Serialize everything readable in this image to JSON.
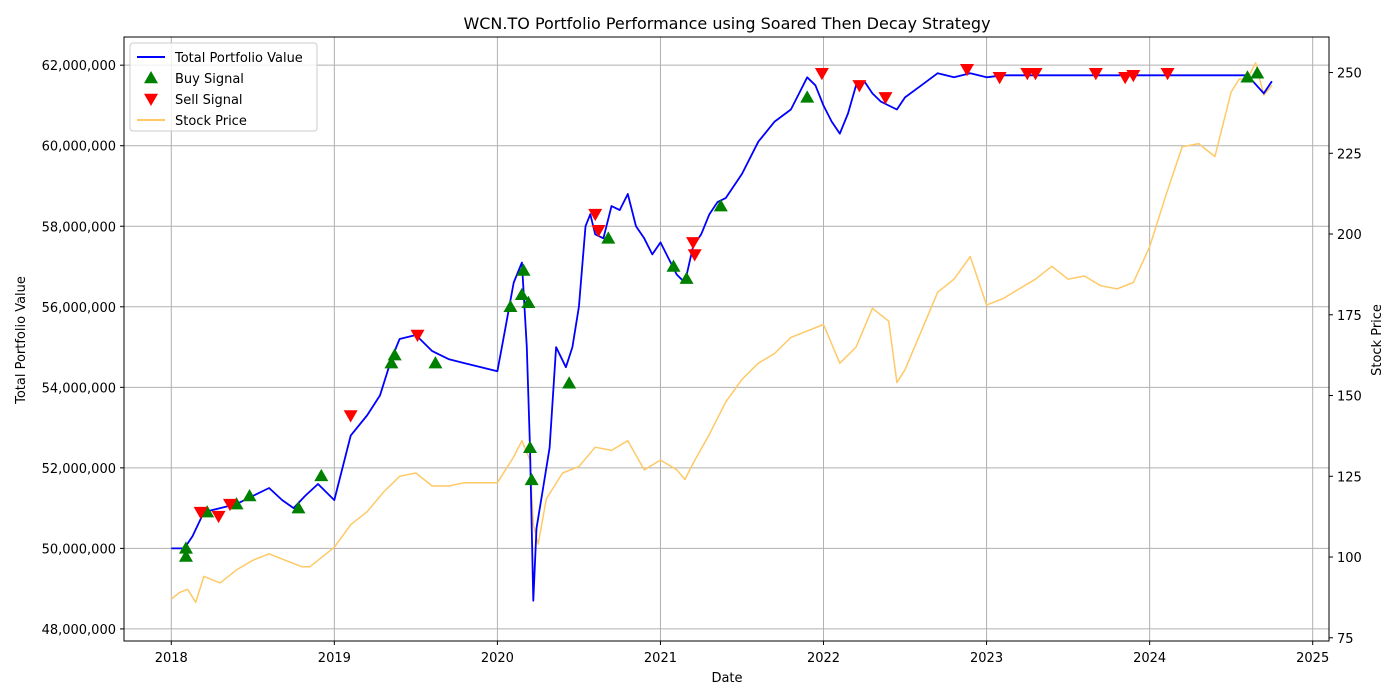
{
  "chart_data": {
    "type": "line",
    "title": "WCN.TO Portfolio Performance using Soared Then Decay Strategy",
    "xlabel": "Date",
    "ylabel": "Total Portfolio Value",
    "y2label": "Stock Price",
    "xlim": [
      2017.71,
      2025.1
    ],
    "ylim": [
      47700000,
      62700000
    ],
    "y2lim": [
      74,
      261
    ],
    "x_ticks": [
      2018,
      2019,
      2020,
      2021,
      2022,
      2023,
      2024,
      2025
    ],
    "x_tick_labels": [
      "2018",
      "2019",
      "2020",
      "2021",
      "2022",
      "2023",
      "2024",
      "2025"
    ],
    "y_ticks": [
      48000000,
      50000000,
      52000000,
      54000000,
      56000000,
      58000000,
      60000000,
      62000000
    ],
    "y_tick_labels": [
      "48,000,000",
      "50,000,000",
      "52,000,000",
      "54,000,000",
      "56,000,000",
      "58,000,000",
      "60,000,000",
      "62,000,000"
    ],
    "y2_ticks": [
      75,
      100,
      125,
      150,
      175,
      200,
      225,
      250
    ],
    "y2_tick_labels": [
      "75",
      "100",
      "125",
      "150",
      "175",
      "200",
      "225",
      "250"
    ],
    "grid": true,
    "legend_position": "top-left",
    "legend": [
      {
        "label": "Total Portfolio Value",
        "kind": "line",
        "color": "#0000ff"
      },
      {
        "label": "Buy Signal",
        "kind": "up-triangle",
        "color": "#008000"
      },
      {
        "label": "Sell Signal",
        "kind": "down-triangle",
        "color": "#ff0000"
      },
      {
        "label": "Stock Price",
        "kind": "line",
        "color": "#ffc966"
      }
    ],
    "series": [
      {
        "name": "Total Portfolio Value",
        "axis": "left",
        "color": "#0000ff",
        "x": [
          2018.0,
          2018.08,
          2018.13,
          2018.2,
          2018.3,
          2018.4,
          2018.5,
          2018.6,
          2018.68,
          2018.75,
          2018.82,
          2018.9,
          2019.0,
          2019.1,
          2019.2,
          2019.28,
          2019.35,
          2019.4,
          2019.5,
          2019.6,
          2019.7,
          2019.8,
          2019.9,
          2020.0,
          2020.05,
          2020.1,
          2020.15,
          2020.18,
          2020.2,
          2020.22,
          2020.24,
          2020.28,
          2020.32,
          2020.36,
          2020.42,
          2020.46,
          2020.5,
          2020.54,
          2020.57,
          2020.6,
          2020.65,
          2020.7,
          2020.75,
          2020.8,
          2020.85,
          2020.9,
          2020.95,
          2021.0,
          2021.05,
          2021.1,
          2021.15,
          2021.2,
          2021.25,
          2021.3,
          2021.35,
          2021.4,
          2021.5,
          2021.6,
          2021.7,
          2021.8,
          2021.85,
          2021.9,
          2021.95,
          2022.0,
          2022.05,
          2022.1,
          2022.15,
          2022.2,
          2022.25,
          2022.3,
          2022.35,
          2022.4,
          2022.45,
          2022.5,
          2022.6,
          2022.7,
          2022.8,
          2022.9,
          2023.0,
          2023.1,
          2023.2,
          2023.3,
          2023.4,
          2023.6,
          2023.8,
          2024.0,
          2024.3,
          2024.6,
          2024.7,
          2024.75
        ],
        "values": [
          50000000,
          50000000,
          50300000,
          50900000,
          51000000,
          51100000,
          51300000,
          51500000,
          51200000,
          51000000,
          51300000,
          51600000,
          51200000,
          52800000,
          53300000,
          53800000,
          54700000,
          55200000,
          55300000,
          54900000,
          54700000,
          54600000,
          54500000,
          54400000,
          55500000,
          56600000,
          57100000,
          55000000,
          52500000,
          48700000,
          50500000,
          51500000,
          52500000,
          55000000,
          54500000,
          55000000,
          56000000,
          58000000,
          58300000,
          57800000,
          57700000,
          58500000,
          58400000,
          58800000,
          58000000,
          57700000,
          57300000,
          57600000,
          57200000,
          56800000,
          56600000,
          57500000,
          57800000,
          58300000,
          58600000,
          58700000,
          59300000,
          60100000,
          60600000,
          60900000,
          61300000,
          61700000,
          61500000,
          61000000,
          60600000,
          60300000,
          60800000,
          61500000,
          61600000,
          61300000,
          61100000,
          61000000,
          60900000,
          61200000,
          61500000,
          61800000,
          61700000,
          61800000,
          61700000,
          61750000,
          61750000,
          61750000,
          61750000,
          61750000,
          61750000,
          61750000,
          61750000,
          61750000,
          61300000,
          61600000
        ]
      },
      {
        "name": "Stock Price",
        "axis": "right",
        "color": "#ffc966",
        "x": [
          2018.0,
          2018.05,
          2018.1,
          2018.15,
          2018.2,
          2018.3,
          2018.4,
          2018.5,
          2018.6,
          2018.7,
          2018.8,
          2018.85,
          2018.9,
          2019.0,
          2019.1,
          2019.2,
          2019.3,
          2019.4,
          2019.5,
          2019.6,
          2019.7,
          2019.8,
          2019.9,
          2020.0,
          2020.1,
          2020.15,
          2020.2,
          2020.22,
          2020.25,
          2020.3,
          2020.4,
          2020.5,
          2020.6,
          2020.7,
          2020.8,
          2020.9,
          2021.0,
          2021.1,
          2021.15,
          2021.2,
          2021.3,
          2021.4,
          2021.5,
          2021.6,
          2021.7,
          2021.8,
          2021.9,
          2022.0,
          2022.1,
          2022.2,
          2022.3,
          2022.4,
          2022.45,
          2022.5,
          2022.6,
          2022.7,
          2022.8,
          2022.9,
          2023.0,
          2023.1,
          2023.2,
          2023.3,
          2023.4,
          2023.5,
          2023.6,
          2023.7,
          2023.8,
          2023.9,
          2024.0,
          2024.1,
          2024.2,
          2024.3,
          2024.4,
          2024.5,
          2024.55,
          2024.6,
          2024.65,
          2024.7,
          2024.75
        ],
        "values": [
          87,
          89,
          90,
          86,
          94,
          92,
          96,
          99,
          101,
          99,
          97,
          97,
          99,
          103,
          110,
          114,
          120,
          125,
          126,
          122,
          122,
          123,
          123,
          123,
          131,
          136,
          130,
          110,
          104,
          118,
          126,
          128,
          134,
          133,
          136,
          127,
          130,
          127,
          124,
          129,
          138,
          148,
          155,
          160,
          163,
          168,
          170,
          172,
          160,
          165,
          177,
          173,
          154,
          158,
          170,
          182,
          186,
          193,
          178,
          180,
          183,
          186,
          190,
          186,
          187,
          184,
          183,
          185,
          196,
          212,
          227,
          228,
          224,
          244,
          248,
          248,
          253,
          243,
          246
        ]
      }
    ],
    "buy_signals": {
      "x": [
        2018.09,
        2018.09,
        2018.22,
        2018.4,
        2018.48,
        2018.78,
        2018.92,
        2019.35,
        2019.37,
        2019.62,
        2020.08,
        2020.15,
        2020.16,
        2020.19,
        2020.2,
        2020.21,
        2020.44,
        2020.68,
        2021.08,
        2021.16,
        2021.37,
        2021.9,
        2024.6,
        2024.66
      ],
      "values": [
        49800000,
        50000000,
        50900000,
        51100000,
        51300000,
        51000000,
        51800000,
        54600000,
        54800000,
        54600000,
        56000000,
        56300000,
        56900000,
        56100000,
        52500000,
        51700000,
        54100000,
        57700000,
        57000000,
        56700000,
        58500000,
        61200000,
        61700000,
        61800000
      ]
    },
    "sell_signals": {
      "x": [
        2018.18,
        2018.29,
        2018.36,
        2019.1,
        2019.51,
        2020.6,
        2020.62,
        2021.2,
        2021.21,
        2021.99,
        2022.22,
        2022.38,
        2022.88,
        2023.08,
        2023.25,
        2023.3,
        2023.67,
        2023.85,
        2023.9,
        2024.11
      ],
      "values": [
        50900000,
        50800000,
        51100000,
        53300000,
        55300000,
        58300000,
        57900000,
        57600000,
        57300000,
        61800000,
        61500000,
        61200000,
        61900000,
        61700000,
        61800000,
        61800000,
        61800000,
        61700000,
        61750000,
        61800000
      ]
    }
  }
}
